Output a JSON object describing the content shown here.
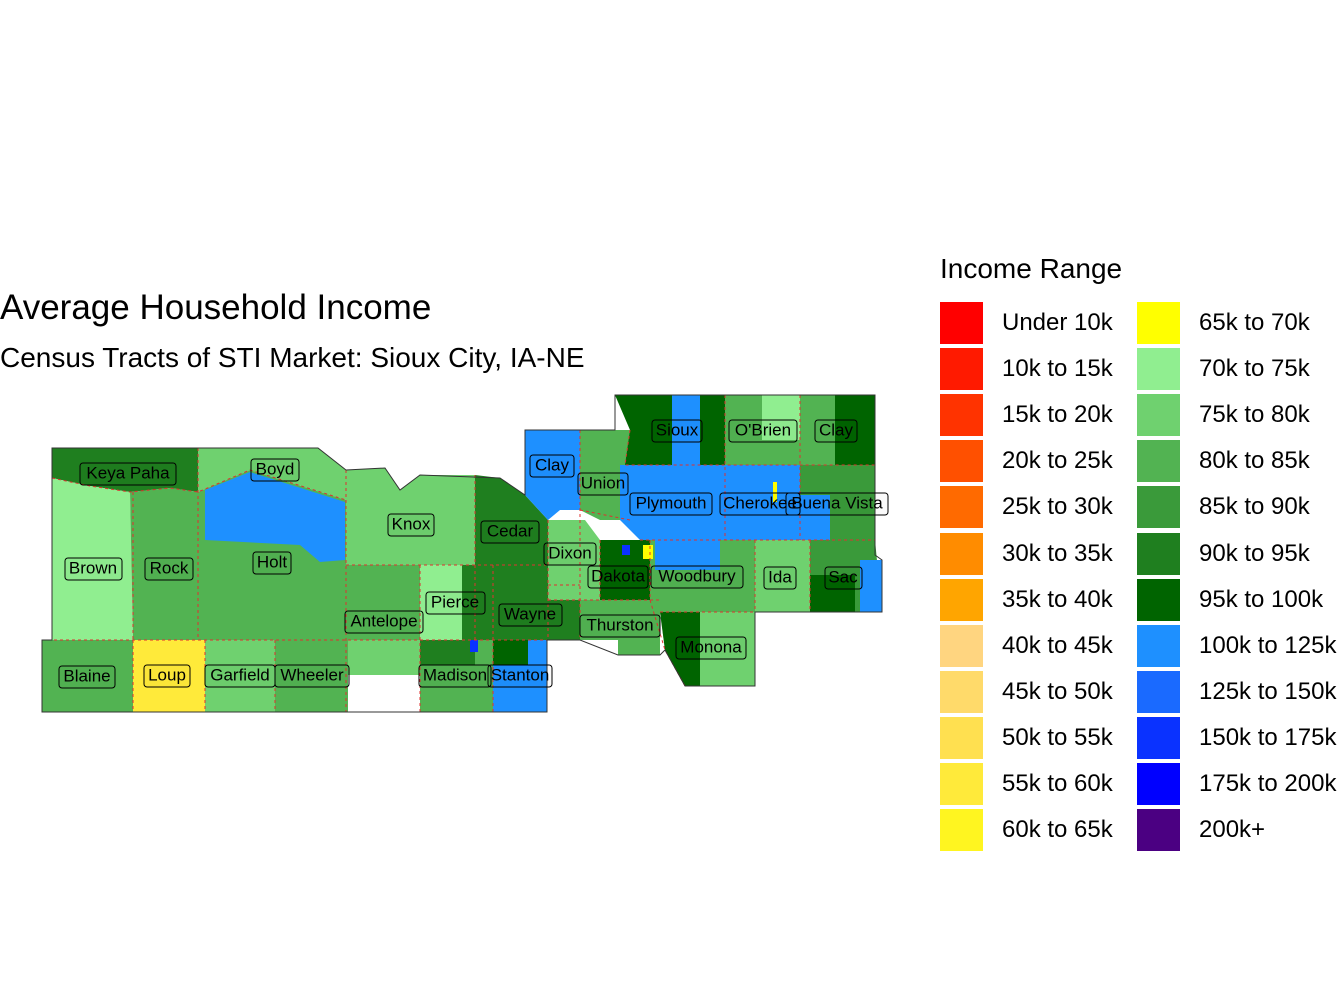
{
  "title": "Average Household Income",
  "subtitle": "Census Tracts of STI Market: Sioux City, IA-NE",
  "legend": {
    "title": "Income Range",
    "items": [
      {
        "label": "Under 10k",
        "color": "#FF0000"
      },
      {
        "label": "10k to 15k",
        "color": "#FF1A00"
      },
      {
        "label": "15k to 20k",
        "color": "#FF3300"
      },
      {
        "label": "20k to 25k",
        "color": "#FF5000"
      },
      {
        "label": "25k to 30k",
        "color": "#FF6A00"
      },
      {
        "label": "30k to 35k",
        "color": "#FF8C00"
      },
      {
        "label": "35k to 40k",
        "color": "#FFA500"
      },
      {
        "label": "40k to 45k",
        "color": "#FFD580"
      },
      {
        "label": "45k to 50k",
        "color": "#FFDA6A"
      },
      {
        "label": "50k to 55k",
        "color": "#FFE050"
      },
      {
        "label": "55k to 60k",
        "color": "#FFEA3A"
      },
      {
        "label": "60k to 65k",
        "color": "#FFF520"
      },
      {
        "label": "65k to 70k",
        "color": "#FFFF00"
      },
      {
        "label": "70k to 75k",
        "color": "#90EE90"
      },
      {
        "label": "75k to 80k",
        "color": "#6FD16F"
      },
      {
        "label": "80k to 85k",
        "color": "#52B352"
      },
      {
        "label": "85k to 90k",
        "color": "#3A9A3A"
      },
      {
        "label": "90k to 95k",
        "color": "#1F7F1F"
      },
      {
        "label": "95k to 100k",
        "color": "#006400"
      },
      {
        "label": "100k to 125k",
        "color": "#1E90FF"
      },
      {
        "label": "125k to 150k",
        "color": "#1A6AFF"
      },
      {
        "label": "150k to 175k",
        "color": "#0A32FF"
      },
      {
        "label": "175k to 200k",
        "color": "#0000FF"
      },
      {
        "label": "200k+",
        "color": "#4B0082"
      }
    ]
  },
  "counties": [
    {
      "name": "Keya Paha"
    },
    {
      "name": "Boyd"
    },
    {
      "name": "Brown"
    },
    {
      "name": "Rock"
    },
    {
      "name": "Holt"
    },
    {
      "name": "Knox"
    },
    {
      "name": "Cedar"
    },
    {
      "name": "Clay"
    },
    {
      "name": "Union"
    },
    {
      "name": "Sioux"
    },
    {
      "name": "O'Brien"
    },
    {
      "name": "Clay"
    },
    {
      "name": "Plymouth"
    },
    {
      "name": "Cherokee"
    },
    {
      "name": "Buena Vista"
    },
    {
      "name": "Dixon"
    },
    {
      "name": "Dakota"
    },
    {
      "name": "Woodbury"
    },
    {
      "name": "Ida"
    },
    {
      "name": "Sac"
    },
    {
      "name": "Antelope"
    },
    {
      "name": "Pierce"
    },
    {
      "name": "Wayne"
    },
    {
      "name": "Thurston"
    },
    {
      "name": "Monona"
    },
    {
      "name": "Blaine"
    },
    {
      "name": "Loup"
    },
    {
      "name": "Garfield"
    },
    {
      "name": "Wheeler"
    },
    {
      "name": "Madison"
    },
    {
      "name": "Stanton"
    }
  ]
}
